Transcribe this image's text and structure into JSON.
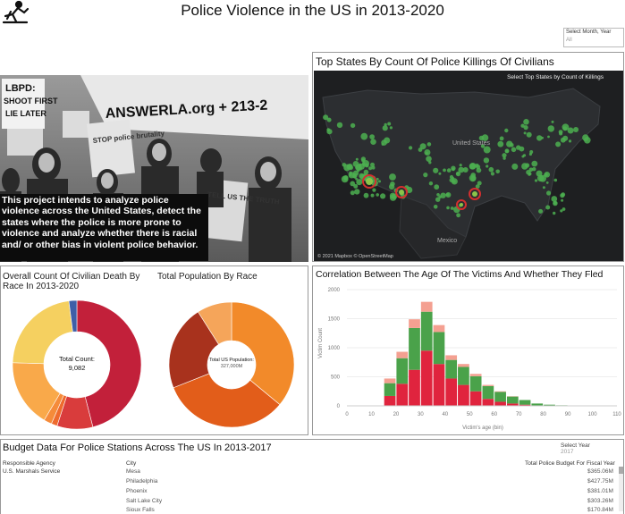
{
  "header": {
    "title": "Police Violence in the US in 2013-2020"
  },
  "filter_month_year": {
    "label": "Select Month, Year",
    "value": "All"
  },
  "intro": {
    "text": "This project intends to analyze police violence across the United States, detect the states where the police is more prone to violence and analyze whether there is racial and/ or other bias in violent police behavior.",
    "photo_signs": [
      "LBPD:",
      "SHOOT FIRST",
      "LIE LATER",
      "ANSWERLA.org + 213-2",
      "STOP police brutality",
      "TELL US THE TRUTH"
    ]
  },
  "map": {
    "title": "Top States By Count Of Police Killings Of Civilians",
    "select_label": "Select Top States by Count of Killings",
    "labels": [
      "United States",
      "Mexico"
    ],
    "credit": "© 2021 Mapbox © OpenStreetMap",
    "points_color": "#4caf50",
    "highlight_color": "#d32f2f"
  },
  "race_death": {
    "title": "Overall Count Of Civilian Death By Race In 2013-2020",
    "center_label": "Total Count:",
    "center_value": "9,082",
    "chart_data": {
      "type": "pie",
      "slices": [
        {
          "value": 0.46,
          "color": "#c2203a"
        },
        {
          "value": 0.09,
          "color": "#d93c3c"
        },
        {
          "value": 0.015,
          "color": "#ee6a2d"
        },
        {
          "value": 0.02,
          "color": "#f58b3a"
        },
        {
          "value": 0.17,
          "color": "#f9a94a"
        },
        {
          "value": 0.225,
          "color": "#f5d060"
        },
        {
          "value": 0.02,
          "color": "#3e5fa8"
        }
      ]
    }
  },
  "race_population": {
    "title": "Total Population By Race",
    "center_label": "Total US Population:",
    "center_value": "327,000M",
    "chart_data": {
      "type": "pie",
      "slices": [
        {
          "value": 0.36,
          "color": "#f28a2a"
        },
        {
          "value": 0.33,
          "color": "#e25d1a"
        },
        {
          "value": 0.22,
          "color": "#a8321d"
        },
        {
          "value": 0.09,
          "color": "#f5a55a"
        }
      ]
    }
  },
  "correlation": {
    "title": "Correlation Between The Age Of The Victims And Whether They Fled",
    "chart_data": {
      "type": "bar",
      "xlabel": "Victim's age (bin)",
      "ylabel": "Victim Count",
      "xlim": [
        0,
        110
      ],
      "ylim": [
        0,
        2000
      ],
      "yticks": [
        "0",
        "500",
        "1000",
        "1500",
        "2000"
      ],
      "xticks": [
        "0",
        "10",
        "20",
        "30",
        "40",
        "50",
        "60",
        "70",
        "80",
        "90",
        "100",
        "110"
      ],
      "bin_width": 5,
      "series": [
        {
          "name": "",
          "color": "#e0243e",
          "values": [
            [
              15,
              170
            ],
            [
              20,
              380
            ],
            [
              25,
              620
            ],
            [
              30,
              950
            ],
            [
              35,
              720
            ],
            [
              40,
              470
            ],
            [
              45,
              360
            ],
            [
              50,
              250
            ],
            [
              55,
              120
            ],
            [
              60,
              70
            ],
            [
              65,
              40
            ],
            [
              70,
              20
            ]
          ]
        },
        {
          "name": "",
          "color": "#4aa24a",
          "values": [
            [
              15,
              220
            ],
            [
              20,
              440
            ],
            [
              25,
              720
            ],
            [
              30,
              670
            ],
            [
              35,
              550
            ],
            [
              40,
              320
            ],
            [
              45,
              310
            ],
            [
              50,
              260
            ],
            [
              55,
              220
            ],
            [
              60,
              170
            ],
            [
              65,
              120
            ],
            [
              70,
              80
            ],
            [
              75,
              40
            ],
            [
              80,
              20
            ],
            [
              85,
              10
            ]
          ]
        },
        {
          "name": "",
          "color": "#f4a091",
          "values": [
            [
              15,
              80
            ],
            [
              20,
              110
            ],
            [
              25,
              150
            ],
            [
              30,
              170
            ],
            [
              35,
              120
            ],
            [
              40,
              80
            ],
            [
              45,
              50
            ],
            [
              50,
              40
            ],
            [
              55,
              20
            ],
            [
              60,
              10
            ],
            [
              65,
              5
            ]
          ]
        }
      ]
    }
  },
  "budget": {
    "title": "Budget Data For Police Stations Across The US In 2013-2017",
    "year_label": "Select Year",
    "year_value": "2017",
    "headers": {
      "agency": "Responsible Agency",
      "city": "City",
      "budget": "Total Police Budget For Fiscal Year"
    },
    "rows": [
      {
        "agency": "U.S. Marshals Service",
        "city": "Mesa",
        "budget": "$365.06M"
      },
      {
        "agency": "",
        "city": "Philadelphia",
        "budget": "$427.75M"
      },
      {
        "agency": "",
        "city": "Phoenix",
        "budget": "$381.01M"
      },
      {
        "agency": "",
        "city": "Salt Lake City",
        "budget": "$303.26M"
      },
      {
        "agency": "",
        "city": "Sioux Falls",
        "budget": "$170.84M"
      }
    ]
  }
}
